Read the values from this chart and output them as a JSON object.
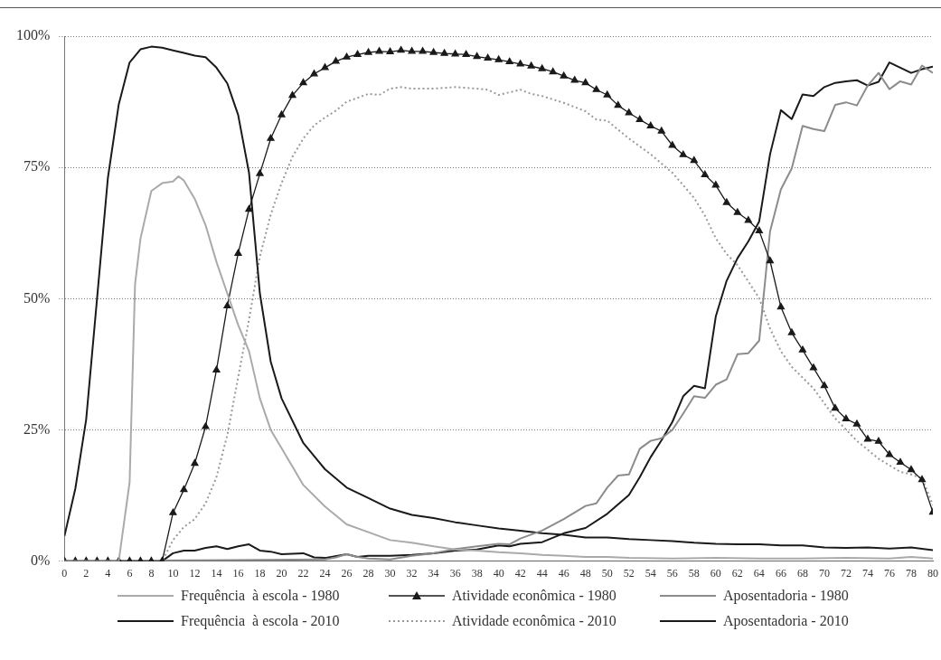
{
  "chart_data": {
    "type": "line",
    "legend": "bottom",
    "grid": "y",
    "xlim": [
      0,
      80
    ],
    "xticks": [
      0,
      2,
      4,
      6,
      8,
      10,
      12,
      14,
      16,
      18,
      20,
      22,
      24,
      26,
      28,
      30,
      32,
      34,
      36,
      38,
      40,
      42,
      44,
      46,
      48,
      50,
      52,
      54,
      56,
      58,
      60,
      62,
      64,
      66,
      68,
      70,
      72,
      74,
      76,
      78,
      80
    ],
    "ylim": [
      0,
      100
    ],
    "yticks": [
      {
        "value": 0,
        "label": "0%"
      },
      {
        "value": 25,
        "label": "25%"
      },
      {
        "value": 50,
        "label": "50%"
      },
      {
        "value": 75,
        "label": "75%"
      },
      {
        "value": 100,
        "label": "100%"
      }
    ],
    "x": [
      0,
      1,
      2,
      3,
      4,
      5,
      6,
      7,
      8,
      9,
      10,
      11,
      12,
      13,
      14,
      15,
      16,
      17,
      18,
      19,
      20,
      21,
      22,
      23,
      24,
      25,
      26,
      27,
      28,
      29,
      30,
      31,
      32,
      33,
      34,
      35,
      36,
      37,
      38,
      39,
      40,
      41,
      42,
      43,
      44,
      45,
      46,
      47,
      48,
      49,
      50,
      51,
      52,
      53,
      54,
      55,
      56,
      57,
      58,
      59,
      60,
      61,
      62,
      63,
      64,
      65,
      66,
      67,
      68,
      69,
      70,
      71,
      72,
      73,
      74,
      75,
      76,
      77,
      78,
      79,
      80
    ],
    "series": [
      {
        "name": "Frequência  à escola - 1980",
        "color": "#aaaaaa",
        "marker": "none",
        "line_style": "solid",
        "x": [
          0,
          5,
          6,
          6.5,
          7,
          8,
          9,
          10,
          10.5,
          11,
          12,
          13,
          14,
          15,
          16,
          17,
          18,
          19,
          20,
          21,
          22,
          24,
          26,
          28,
          30,
          32,
          34,
          36,
          38,
          40,
          42,
          44,
          46,
          48,
          50,
          52,
          56,
          60,
          64,
          68,
          72,
          76,
          78,
          80
        ],
        "values": [
          0,
          0,
          15,
          52.7,
          61.4,
          70.5,
          72,
          72.3,
          73.3,
          72.5,
          69,
          64,
          57,
          51,
          45,
          40,
          31,
          25,
          21.5,
          18,
          14.5,
          10.4,
          7,
          5.5,
          4,
          3.5,
          2.8,
          2.2,
          2,
          1.7,
          1.5,
          1.2,
          1,
          0.8,
          0.8,
          0.6,
          0.5,
          0.6,
          0.5,
          0.5,
          0.6,
          0.5,
          0.8,
          0.5
        ]
      },
      {
        "name": "Atividade econômica - 1980",
        "color": "#1a1a1a",
        "marker": "triangle",
        "line_style": "solid",
        "values": [
          0,
          0,
          0,
          0,
          0,
          0,
          0,
          0,
          0,
          0,
          9.2,
          13.6,
          18.6,
          25.6,
          36.4,
          48.6,
          58.6,
          67,
          73.8,
          80.5,
          85,
          88.7,
          91.1,
          92.8,
          94,
          95.2,
          96,
          96.5,
          96.9,
          97.1,
          97,
          97.3,
          97.1,
          97.1,
          96.9,
          96.7,
          96.6,
          96.5,
          96.1,
          95.8,
          95.5,
          95.1,
          94.7,
          94.3,
          93.8,
          93.2,
          92.4,
          91.6,
          91.1,
          89.8,
          88.8,
          86.8,
          85.4,
          84.1,
          82.9,
          81.9,
          79.2,
          77.4,
          76.3,
          73.6,
          71.6,
          68.3,
          66.4,
          64.9,
          62.9,
          57.2,
          48.4,
          43.5,
          40.2,
          36.8,
          33.4,
          29.1,
          27.1,
          26.1,
          23.2,
          22.8,
          20.3,
          18.8,
          17.4,
          15.5,
          9.3
        ]
      },
      {
        "name": "Aposentadoria - 1980",
        "color": "#8c8c8c",
        "marker": "none",
        "line_style": "solid",
        "x": [
          0,
          24,
          25,
          26,
          27,
          28,
          30,
          32,
          34,
          36,
          38,
          40,
          41,
          42,
          44,
          46,
          48,
          49,
          50,
          51,
          52,
          53,
          54,
          55,
          56,
          57,
          58,
          59,
          60,
          61,
          62,
          63,
          64,
          65,
          66,
          67,
          68,
          69,
          70,
          71,
          72,
          73,
          74,
          75,
          76,
          77,
          78,
          79,
          80
        ],
        "values": [
          0,
          0.3,
          0.7,
          1.3,
          0.8,
          0.5,
          0.3,
          1,
          1.5,
          2.3,
          2.8,
          3.3,
          3.2,
          4.3,
          5.8,
          8,
          10.5,
          11,
          14,
          16.3,
          16.5,
          21.4,
          22.9,
          23.4,
          25,
          28.1,
          31.4,
          31.1,
          33.6,
          34.6,
          39.4,
          39.6,
          42,
          62.8,
          70.8,
          74.8,
          82.9,
          82.3,
          81.9,
          86.9,
          87.4,
          86.8,
          90.6,
          93,
          89.9,
          91.4,
          90.8,
          94.4,
          93
        ]
      },
      {
        "name": "Frequência  à escola - 2010",
        "color": "#1a1a1a",
        "marker": "none",
        "line_style": "solid",
        "x": [
          0,
          1,
          2,
          3,
          4,
          5,
          6,
          7,
          8,
          9,
          10,
          11,
          12,
          13,
          14,
          15,
          16,
          17,
          18,
          19,
          20,
          22,
          24,
          26,
          28,
          30,
          32,
          34,
          36,
          38,
          40,
          42,
          44,
          46,
          48,
          50,
          52,
          54,
          56,
          58,
          60,
          62,
          64,
          66,
          68,
          70,
          72,
          74,
          76,
          78,
          80
        ],
        "values": [
          4.8,
          13.8,
          27,
          50,
          73,
          87,
          95,
          97.5,
          98,
          97.8,
          97.3,
          96.8,
          96.3,
          96,
          94,
          91,
          85,
          74,
          51,
          38,
          31,
          22.5,
          17.5,
          14,
          12,
          10,
          8.8,
          8.2,
          7.4,
          6.8,
          6.2,
          5.8,
          5.3,
          5,
          4.5,
          4.5,
          4.2,
          4,
          3.8,
          3.5,
          3.3,
          3.2,
          3.2,
          3,
          3,
          2.6,
          2.5,
          2.6,
          2.4,
          2.6,
          2.1
        ]
      },
      {
        "name": "Atividade econômica - 2010",
        "color": "#999999",
        "marker": "none",
        "line_style": "dotted",
        "x": [
          0,
          9,
          10,
          11,
          12,
          13,
          14,
          15,
          16,
          17,
          18,
          19,
          20,
          21,
          22,
          23,
          24,
          25,
          26,
          28,
          29,
          30,
          31,
          32,
          34,
          36,
          38,
          39,
          40,
          41,
          42,
          43,
          44,
          46,
          48,
          49,
          50,
          52,
          54,
          56,
          58,
          59,
          60,
          61,
          62,
          64,
          65,
          66,
          67,
          69,
          71,
          73,
          75,
          77,
          78,
          79,
          80
        ],
        "values": [
          0,
          0,
          4,
          6.5,
          8,
          11,
          16,
          24,
          35,
          46,
          58,
          66,
          72,
          77,
          80.5,
          83,
          84.5,
          85.8,
          87.5,
          89,
          88.8,
          90,
          90.3,
          90,
          90,
          90.3,
          90,
          89.8,
          88.8,
          89.3,
          89.8,
          89,
          88.6,
          87.3,
          85.7,
          84.1,
          83.9,
          80.5,
          77.5,
          74,
          69.2,
          65.8,
          61.5,
          58.5,
          56.4,
          50.1,
          44.3,
          40,
          37,
          32.9,
          27.2,
          22.9,
          19.5,
          17,
          16.5,
          15.8,
          10.7
        ]
      },
      {
        "name": "Aposentadoria - 2010",
        "color": "#1a1a1a",
        "marker": "none",
        "line_style": "solid",
        "x": [
          0,
          9,
          10,
          11,
          12,
          13,
          14,
          15,
          16,
          17,
          18,
          19,
          20,
          22,
          23,
          24,
          26,
          27,
          28,
          30,
          32,
          34,
          36,
          38,
          40,
          41,
          42,
          44,
          46,
          48,
          50,
          52,
          53,
          54,
          55,
          56,
          57,
          58,
          59,
          60,
          61,
          62,
          63,
          64,
          65,
          66,
          67,
          68,
          69,
          70,
          71,
          72,
          73,
          74,
          75,
          76,
          77,
          78,
          79,
          80
        ],
        "values": [
          0,
          0,
          1.5,
          2,
          2,
          2.5,
          2.8,
          2.3,
          2.8,
          3.2,
          2,
          1.8,
          1.3,
          1.5,
          0.7,
          0.6,
          1.3,
          0.8,
          1,
          1,
          1.2,
          1.5,
          2,
          2.2,
          3,
          2.8,
          3.3,
          3.6,
          5.3,
          6.3,
          9,
          12.6,
          16,
          19.8,
          23,
          26.5,
          31.4,
          33.4,
          32.9,
          46.6,
          53.4,
          57.7,
          60.9,
          64.7,
          77.5,
          85.9,
          84.2,
          88.9,
          88.6,
          90.3,
          91.1,
          91.4,
          91.6,
          90.6,
          91.3,
          95,
          94,
          93,
          93.7,
          94.2
        ]
      }
    ]
  }
}
